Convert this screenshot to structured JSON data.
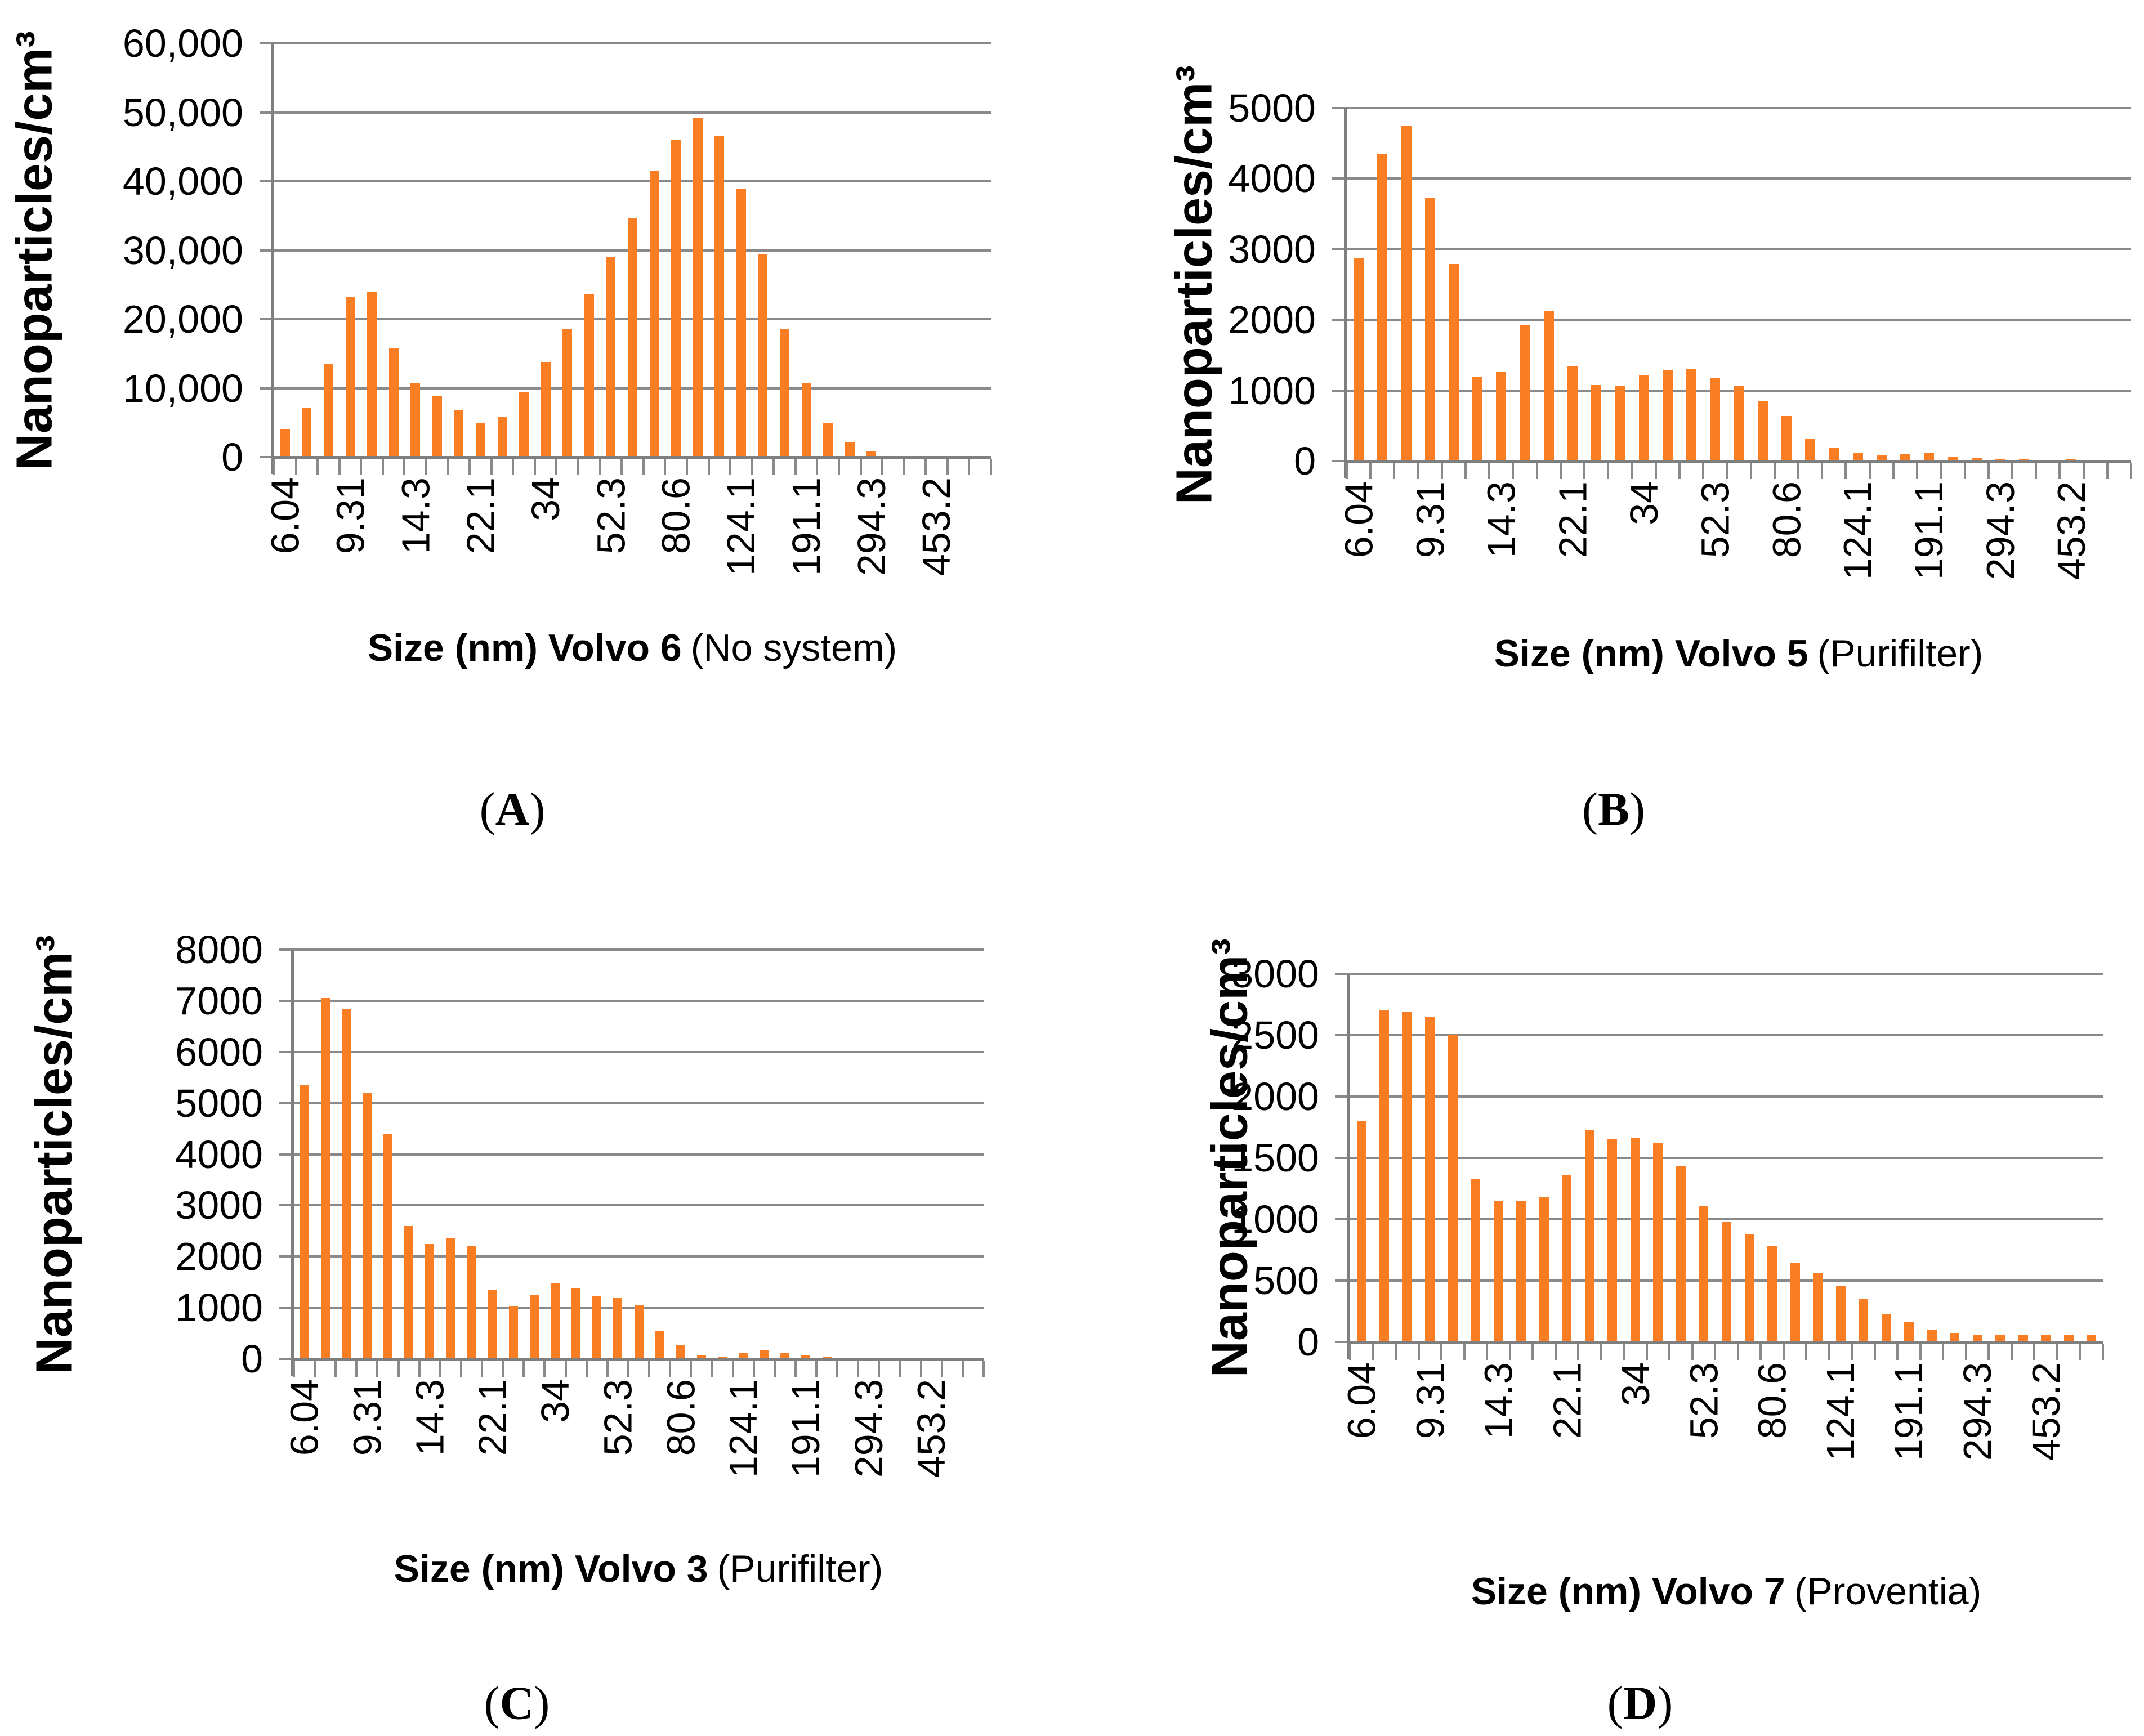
{
  "figure": {
    "panel_open": "(",
    "panel_close": ")",
    "bar_color": "#F97D23",
    "grid_color": "#8A8A8A",
    "axis_color": "#7F7F7F",
    "text_color": "#000000"
  },
  "chart_data": [
    {
      "type": "bar",
      "panel": "A",
      "title_bold": "Size (nm) Volvo 6",
      "title_regular": "(No system)",
      "xlabel": "Size (nm) Volvo 6 (No system)",
      "ylabel": "Nanoparticles/cm³",
      "ymax": 60000,
      "ylim": [
        0,
        60000
      ],
      "grid": true,
      "legend": "none",
      "ytick_labels": [
        "60,000",
        "50,000",
        "40,000",
        "30,000",
        "20,000",
        "10,000",
        "0"
      ],
      "x_tick_labels": [
        "6.04",
        "9.31",
        "14.3",
        "22.1",
        "34",
        "52.3",
        "80.6",
        "124.1",
        "191.1",
        "294.3",
        "453.2"
      ],
      "x_label_every": 3,
      "n_bins": 33,
      "values": [
        4100,
        7200,
        13500,
        23300,
        24000,
        15800,
        10800,
        8800,
        6800,
        4900,
        5800,
        9500,
        13800,
        18600,
        23600,
        29000,
        34600,
        41500,
        46000,
        49200,
        46500,
        38900,
        29500,
        18600,
        10700,
        5000,
        2100,
        800,
        0,
        0,
        0,
        0,
        0
      ]
    },
    {
      "type": "bar",
      "panel": "B",
      "title_bold": "Size (nm) Volvo 5",
      "title_regular": "(Purifilter)",
      "xlabel": "Size (nm) Volvo 5 (Purifilter)",
      "ylabel": "Nanoparticles/cm³",
      "ymax": 5000,
      "ylim": [
        0,
        5000
      ],
      "grid": true,
      "legend": "none",
      "ytick_labels": [
        "5000",
        "4000",
        "3000",
        "2000",
        "1000",
        "0"
      ],
      "x_tick_labels": [
        "6.04",
        "9.31",
        "14.3",
        "22.1",
        "34",
        "52.3",
        "80.6",
        "124.1",
        "191.1",
        "294.3",
        "453.2"
      ],
      "x_label_every": 3,
      "n_bins": 33,
      "values": [
        2880,
        4350,
        4750,
        3730,
        2790,
        1200,
        1260,
        1930,
        2120,
        1340,
        1080,
        1070,
        1220,
        1290,
        1300,
        1170,
        1060,
        850,
        640,
        320,
        185,
        115,
        90,
        100,
        115,
        65,
        50,
        25,
        20,
        18,
        20,
        15,
        15
      ]
    },
    {
      "type": "bar",
      "panel": "C",
      "title_bold": "Size (nm) Volvo 3",
      "title_regular": "(Purifilter)",
      "xlabel": "Size (nm) Volvo 3 (Purifilter)",
      "ylabel": "Nanoparticles/cm³",
      "ymax": 8000,
      "ylim": [
        0,
        8000
      ],
      "grid": true,
      "legend": "none",
      "ytick_labels": [
        "8000",
        "7000",
        "6000",
        "5000",
        "4000",
        "3000",
        "2000",
        "1000",
        "0"
      ],
      "x_tick_labels": [
        "6.04",
        "9.31",
        "14.3",
        "22.1",
        "34",
        "52.3",
        "80.6",
        "124.1",
        "191.1",
        "294.3",
        "453.2"
      ],
      "x_label_every": 3,
      "n_bins": 33,
      "values": [
        5350,
        7050,
        6850,
        5200,
        4400,
        2600,
        2250,
        2350,
        2200,
        1350,
        1030,
        1250,
        1480,
        1380,
        1220,
        1190,
        1050,
        540,
        260,
        65,
        45,
        120,
        175,
        120,
        80,
        30,
        10,
        0,
        0,
        0,
        0,
        0,
        0
      ]
    },
    {
      "type": "bar",
      "panel": "D",
      "title_bold": "Size (nm) Volvo 7",
      "title_regular": "(Proventia)",
      "xlabel": "Size (nm) Volvo 7 (Proventia)",
      "ylabel": "Nanoparticles/cm³",
      "ymax": 3000,
      "ylim": [
        0,
        3000
      ],
      "grid": true,
      "legend": "none",
      "ytick_labels": [
        "3000",
        "2500",
        "2000",
        "1500",
        "1000",
        "500",
        "0"
      ],
      "x_tick_labels": [
        "6.04",
        "9.31",
        "14.3",
        "22.1",
        "34",
        "52.3",
        "80.6",
        "124.1",
        "191.1",
        "294.3",
        "453.2"
      ],
      "x_label_every": 3,
      "n_bins": 33,
      "values": [
        1800,
        2700,
        2690,
        2650,
        2500,
        1330,
        1150,
        1150,
        1180,
        1360,
        1730,
        1650,
        1660,
        1620,
        1430,
        1110,
        980,
        880,
        780,
        640,
        560,
        460,
        350,
        230,
        160,
        100,
        75,
        60,
        60,
        60,
        60,
        55,
        55
      ]
    }
  ]
}
